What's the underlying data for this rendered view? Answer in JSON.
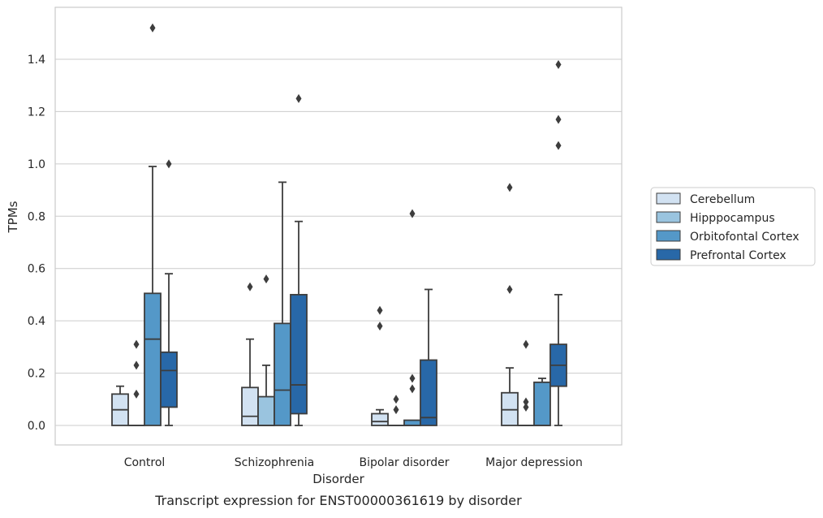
{
  "chart_data": {
    "type": "box",
    "caption": "Transcript expression for ENST00000361619 by disorder",
    "xlabel": "Disorder",
    "ylabel": "TPMs",
    "ylim": [
      -0.07,
      1.6
    ],
    "yticks": [
      0.0,
      0.2,
      0.4,
      0.6,
      0.8,
      1.0,
      1.2,
      1.4
    ],
    "ytick_labels": [
      "0.0",
      "0.2",
      "0.4",
      "0.6",
      "0.8",
      "1.0",
      "1.2",
      "1.4"
    ],
    "grid": "horizontal",
    "legend_position": "right",
    "categories": [
      "Control",
      "Schizophrenia",
      "Bipolar disorder",
      "Major depression"
    ],
    "series": [
      {
        "name": "Cerebellum",
        "color": "#d2e2f2",
        "boxes": [
          {
            "whislo": 0.0,
            "q1": 0.0,
            "med": 0.06,
            "q3": 0.12,
            "whishi": 0.15,
            "fliers": []
          },
          {
            "whislo": 0.0,
            "q1": 0.0,
            "med": 0.035,
            "q3": 0.145,
            "whishi": 0.33,
            "fliers": [
              0.53
            ]
          },
          {
            "whislo": 0.0,
            "q1": 0.0,
            "med": 0.015,
            "q3": 0.045,
            "whishi": 0.06,
            "fliers": [
              0.44,
              0.38
            ]
          },
          {
            "whislo": 0.0,
            "q1": 0.0,
            "med": 0.06,
            "q3": 0.125,
            "whishi": 0.22,
            "fliers": [
              0.91,
              0.52
            ]
          }
        ]
      },
      {
        "name": "Hipppocampus",
        "color": "#9ac4df",
        "boxes": [
          {
            "whislo": 0.0,
            "q1": 0.0,
            "med": 0.0,
            "q3": 0.0,
            "whishi": 0.0,
            "fliers": [
              0.31,
              0.23,
              0.12
            ]
          },
          {
            "whislo": 0.0,
            "q1": 0.0,
            "med": 0.0,
            "q3": 0.11,
            "whishi": 0.23,
            "fliers": [
              0.56
            ]
          },
          {
            "whislo": 0.0,
            "q1": 0.0,
            "med": 0.0,
            "q3": 0.0,
            "whishi": 0.0,
            "fliers": [
              0.1,
              0.06
            ]
          },
          {
            "whislo": 0.0,
            "q1": 0.0,
            "med": 0.0,
            "q3": 0.0,
            "whishi": 0.0,
            "fliers": [
              0.31,
              0.09,
              0.07
            ]
          }
        ]
      },
      {
        "name": "Orbitofontal Cortex",
        "color": "#5498c8",
        "boxes": [
          {
            "whislo": 0.0,
            "q1": 0.0,
            "med": 0.33,
            "q3": 0.505,
            "whishi": 0.99,
            "fliers": [
              1.52
            ]
          },
          {
            "whislo": 0.0,
            "q1": 0.0,
            "med": 0.135,
            "q3": 0.39,
            "whishi": 0.93,
            "fliers": []
          },
          {
            "whislo": 0.0,
            "q1": 0.0,
            "med": 0.0,
            "q3": 0.02,
            "whishi": 0.02,
            "fliers": [
              0.81,
              0.18,
              0.14
            ]
          },
          {
            "whislo": 0.0,
            "q1": 0.0,
            "med": 0.0,
            "q3": 0.165,
            "whishi": 0.18,
            "fliers": []
          }
        ]
      },
      {
        "name": "Prefrontal Cortex",
        "color": "#2868a8",
        "boxes": [
          {
            "whislo": 0.0,
            "q1": 0.07,
            "med": 0.21,
            "q3": 0.28,
            "whishi": 0.58,
            "fliers": [
              1.0
            ]
          },
          {
            "whislo": 0.0,
            "q1": 0.045,
            "med": 0.155,
            "q3": 0.5,
            "whishi": 0.78,
            "fliers": [
              1.25
            ]
          },
          {
            "whislo": 0.0,
            "q1": 0.0,
            "med": 0.03,
            "q3": 0.25,
            "whishi": 0.52,
            "fliers": []
          },
          {
            "whislo": 0.0,
            "q1": 0.15,
            "med": 0.23,
            "q3": 0.31,
            "whishi": 0.5,
            "fliers": [
              1.38,
              1.17,
              1.07
            ]
          }
        ]
      }
    ]
  }
}
